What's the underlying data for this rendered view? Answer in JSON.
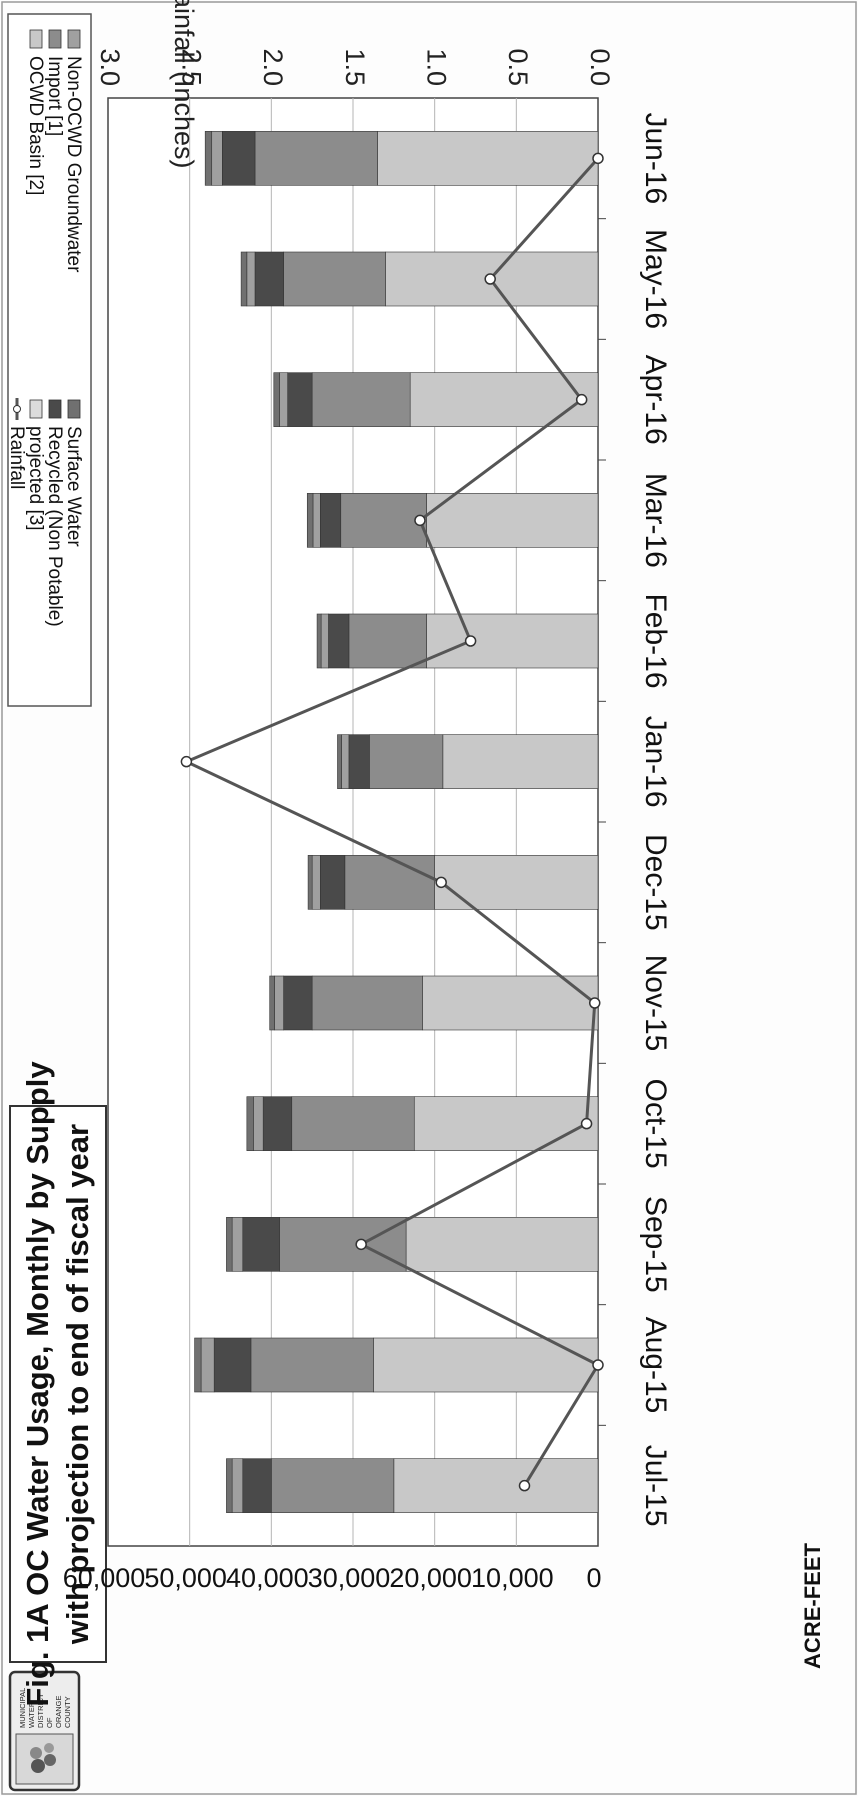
{
  "chart_data": {
    "type": "bar",
    "title": "Fig. 1A  OC Water Usage, Monthly by Supply",
    "subtitle": "with projection to end of fiscal year",
    "ylabel": "ACRE-FEET",
    "y2label": "Rainfall (Inches)",
    "ylim": [
      0,
      60000
    ],
    "y2lim": [
      0,
      3.0
    ],
    "yticks": [
      "0",
      "10,000",
      "20,000",
      "30,000",
      "40,000",
      "50,000",
      "60,000"
    ],
    "y2ticks": [
      "0.0",
      "0.5",
      "1.0",
      "1.5",
      "2.0",
      "2.5",
      "3.0"
    ],
    "categories": [
      "Jul-15",
      "Aug-15",
      "Sep-15",
      "Oct-15",
      "Nov-15",
      "Dec-15",
      "Jan-16",
      "Feb-16",
      "Mar-16",
      "Apr-16",
      "May-16",
      "Jun-16"
    ],
    "stacked": true,
    "series": [
      {
        "name": "OCWD Basin [2]",
        "values": [
          25000,
          27500,
          23500,
          22500,
          21500,
          20000,
          19000,
          21000,
          21000,
          23000,
          26000,
          27000
        ],
        "color": "#c8c8c8"
      },
      {
        "name": "Import [1]",
        "values": [
          15000,
          15000,
          15500,
          15000,
          13500,
          11000,
          9000,
          9500,
          10500,
          12000,
          12500,
          15000
        ],
        "color": "#8c8c8c"
      },
      {
        "name": "Recycled (Non Potable)",
        "values": [
          3500,
          4500,
          4500,
          3500,
          3500,
          3000,
          2500,
          2500,
          2500,
          3000,
          3500,
          4000
        ],
        "color": "#4a4a4a"
      },
      {
        "name": "Non-OCWD Groundwater",
        "values": [
          1300,
          1600,
          1300,
          1200,
          1100,
          1000,
          900,
          900,
          900,
          1000,
          1000,
          1300
        ],
        "color": "#a0a0a0"
      },
      {
        "name": "Surface Water",
        "values": [
          700,
          800,
          700,
          800,
          600,
          500,
          500,
          500,
          700,
          700,
          700,
          800
        ],
        "color": "#707070"
      },
      {
        "name": "projected [3]",
        "values": [
          0,
          0,
          0,
          0,
          0,
          0,
          0,
          0,
          0,
          0,
          0,
          0
        ],
        "color": "#dcdcdc"
      }
    ],
    "line_series": {
      "name": "Rainfall",
      "axis": "right",
      "values": [
        0.45,
        0.0,
        1.45,
        0.07,
        0.02,
        0.96,
        2.52,
        0.78,
        1.09,
        0.1,
        0.66,
        0.0
      ],
      "color": "#555555"
    },
    "legend_order_left": [
      "Surface Water",
      "Recycled (Non Potable)",
      "projected [3]",
      "Rainfall"
    ],
    "legend_order_right": [
      "Non-OCWD Groundwater",
      "Import [1]",
      "OCWD Basin [2]"
    ],
    "legend_position": "top",
    "grid": true
  },
  "logo": {
    "lines": [
      "MUNICIPAL",
      "WATER",
      "DISTRICT",
      "OF",
      "ORANGE",
      "COUNTY"
    ]
  }
}
